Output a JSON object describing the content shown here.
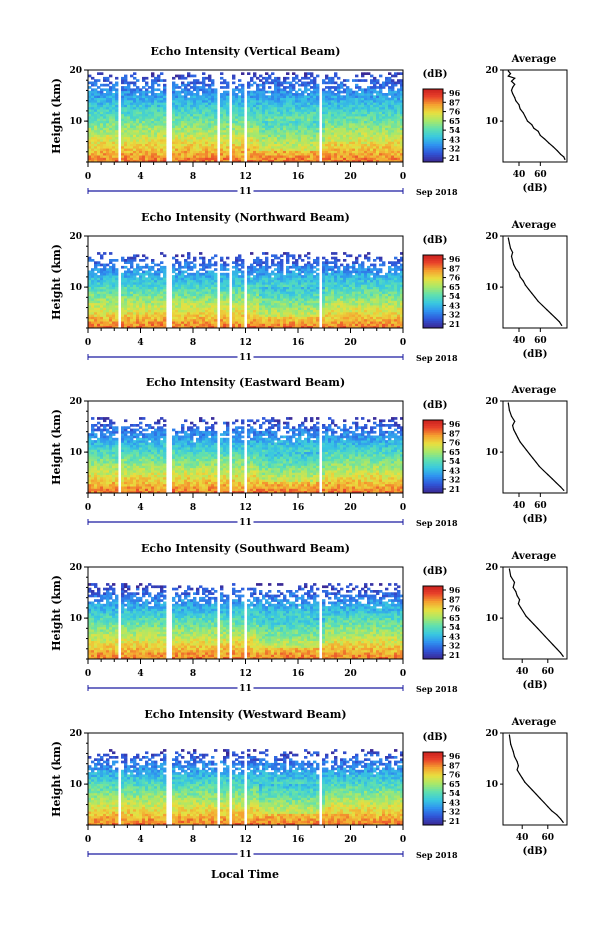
{
  "figure": {
    "xlabel": "Local Time",
    "colors": {
      "background": "#ffffff",
      "axis": "#000000",
      "date_axis": "#1a1aa0",
      "colormap": [
        "#3b2a96",
        "#2f55d9",
        "#2f92f0",
        "#39c8e0",
        "#5fe0b0",
        "#a8e86a",
        "#e8e040",
        "#f5a030",
        "#e8402a",
        "#c81e1e"
      ]
    }
  },
  "chart_data": [
    {
      "type": "heatmap",
      "title": "Echo Intensity (Vertical Beam)",
      "ylabel": "Height (km)",
      "ylim": [
        2,
        20
      ],
      "yticks": [
        "20",
        "10"
      ],
      "xlim": [
        0,
        24
      ],
      "xticks": [
        "0",
        "4",
        "8",
        "12",
        "16",
        "20",
        "0"
      ],
      "date_label": "11",
      "date_suffix": "Sep 2018",
      "colorbar_label": "(dB)",
      "colorbar_ticks": [
        "96",
        "87",
        "76",
        "65",
        "54",
        "43",
        "32",
        "21"
      ],
      "top_km": 19.5,
      "gaps_hours": [
        [
          2.3,
          2.6
        ],
        [
          5.9,
          6.5
        ],
        [
          9.8,
          10.1
        ],
        [
          10.8,
          11.0
        ],
        [
          11.9,
          12.2
        ],
        [
          17.6,
          17.9
        ]
      ],
      "profile": {
        "title": "Average",
        "xlabel": "(dB)",
        "xticks": [
          "40",
          "60"
        ],
        "xlim": [
          25,
          85
        ],
        "ylim": [
          2,
          20
        ],
        "yticks": [
          "20",
          "10"
        ],
        "x": [
          83,
          82,
          79,
          76,
          72,
          68,
          64,
          60,
          58,
          54,
          52,
          48,
          46,
          44,
          41,
          40,
          37,
          36,
          34,
          33,
          34,
          36,
          33,
          36,
          30,
          32,
          30
        ],
        "y": [
          2.5,
          3.0,
          3.5,
          4.2,
          5.0,
          5.7,
          6.5,
          7.2,
          8.0,
          8.6,
          9.3,
          10.0,
          10.8,
          11.6,
          12.4,
          13.2,
          14.0,
          14.6,
          15.4,
          16.0,
          16.6,
          17.2,
          17.8,
          18.4,
          18.8,
          19.3,
          19.8
        ]
      }
    },
    {
      "type": "heatmap",
      "title": "Echo Intensity (Northward Beam)",
      "ylabel": "Height (km)",
      "ylim": [
        2,
        20
      ],
      "yticks": [
        "20",
        "10"
      ],
      "xlim": [
        0,
        24
      ],
      "xticks": [
        "0",
        "4",
        "8",
        "12",
        "16",
        "20",
        "0"
      ],
      "date_label": "11",
      "date_suffix": "Sep 2018",
      "colorbar_label": "(dB)",
      "colorbar_ticks": [
        "96",
        "87",
        "76",
        "65",
        "54",
        "43",
        "32",
        "21"
      ],
      "top_km": 16.5,
      "gaps_hours": [
        [
          2.3,
          2.6
        ],
        [
          5.9,
          6.5
        ],
        [
          9.8,
          10.1
        ],
        [
          10.8,
          11.0
        ],
        [
          11.9,
          12.2
        ],
        [
          17.6,
          17.9
        ]
      ],
      "profile": {
        "title": "Average",
        "xlabel": "(dB)",
        "xticks": [
          "40",
          "60"
        ],
        "xlim": [
          25,
          85
        ],
        "ylim": [
          2,
          20
        ],
        "yticks": [
          "20",
          "10"
        ],
        "x": [
          80,
          78,
          74,
          70,
          66,
          62,
          58,
          55,
          52,
          49,
          46,
          44,
          41,
          40,
          37,
          35,
          34,
          33,
          34,
          32,
          31,
          30
        ],
        "y": [
          2.5,
          3.2,
          4.0,
          4.8,
          5.6,
          6.4,
          7.2,
          8.0,
          8.8,
          9.6,
          10.4,
          11.2,
          12.0,
          12.8,
          13.6,
          14.4,
          15.2,
          16.0,
          16.8,
          17.6,
          18.6,
          19.6
        ]
      }
    },
    {
      "type": "heatmap",
      "title": "Echo Intensity (Eastward Beam)",
      "ylabel": "Height (km)",
      "ylim": [
        2,
        20
      ],
      "yticks": [
        "20",
        "10"
      ],
      "xlim": [
        0,
        24
      ],
      "xticks": [
        "0",
        "4",
        "8",
        "12",
        "16",
        "20",
        "0"
      ],
      "date_label": "11",
      "date_suffix": "Sep 2018",
      "colorbar_label": "(dB)",
      "colorbar_ticks": [
        "96",
        "87",
        "76",
        "65",
        "54",
        "43",
        "32",
        "21"
      ],
      "top_km": 16.5,
      "gaps_hours": [
        [
          2.3,
          2.6
        ],
        [
          5.9,
          6.5
        ],
        [
          9.8,
          10.1
        ],
        [
          10.8,
          11.0
        ],
        [
          11.9,
          12.2
        ],
        [
          17.6,
          17.9
        ]
      ],
      "profile": {
        "title": "Average",
        "xlabel": "(dB)",
        "xticks": [
          "40",
          "60"
        ],
        "xlim": [
          25,
          85
        ],
        "ylim": [
          2,
          20
        ],
        "yticks": [
          "20",
          "10"
        ],
        "x": [
          82,
          79,
          75,
          71,
          67,
          63,
          59,
          56,
          53,
          50,
          47,
          44,
          41,
          39,
          37,
          35,
          34,
          36,
          33,
          31,
          30
        ],
        "y": [
          2.5,
          3.2,
          4.0,
          4.8,
          5.6,
          6.4,
          7.2,
          8.0,
          8.8,
          9.6,
          10.4,
          11.2,
          12.0,
          12.8,
          13.6,
          14.4,
          15.2,
          16.0,
          17.0,
          18.2,
          19.6
        ]
      }
    },
    {
      "type": "heatmap",
      "title": "Echo Intensity (Southward Beam)",
      "ylabel": "Height (km)",
      "ylim": [
        2,
        20
      ],
      "yticks": [
        "20",
        "10"
      ],
      "xlim": [
        0,
        24
      ],
      "xticks": [
        "0",
        "4",
        "8",
        "12",
        "16",
        "20",
        "0"
      ],
      "date_label": "11",
      "date_suffix": "Sep 2018",
      "colorbar_label": "(dB)",
      "colorbar_ticks": [
        "96",
        "87",
        "76",
        "65",
        "54",
        "43",
        "32",
        "21"
      ],
      "top_km": 16.5,
      "gaps_hours": [
        [
          2.3,
          2.6
        ],
        [
          5.9,
          6.5
        ],
        [
          9.8,
          10.1
        ],
        [
          10.8,
          11.0
        ],
        [
          11.9,
          12.2
        ],
        [
          17.6,
          17.9
        ]
      ],
      "profile": {
        "title": "Average",
        "xlabel": "(dB)",
        "xticks": [
          "40",
          "60"
        ],
        "xlim": [
          25,
          75
        ],
        "ylim": [
          2,
          20
        ],
        "yticks": [
          "20",
          "10"
        ],
        "x": [
          72,
          70,
          67,
          64,
          61,
          58,
          55,
          52,
          49,
          46,
          43,
          41,
          39,
          37,
          38,
          36,
          35,
          33,
          34,
          31,
          30
        ],
        "y": [
          2.5,
          3.2,
          4.0,
          4.8,
          5.6,
          6.4,
          7.2,
          8.0,
          8.8,
          9.6,
          10.4,
          11.2,
          12.0,
          12.8,
          13.6,
          14.4,
          15.2,
          16.0,
          17.0,
          18.2,
          19.6
        ]
      }
    },
    {
      "type": "heatmap",
      "title": "Echo Intensity (Westward Beam)",
      "ylabel": "Height (km)",
      "ylim": [
        2,
        20
      ],
      "yticks": [
        "20",
        "10"
      ],
      "xlim": [
        0,
        24
      ],
      "xticks": [
        "0",
        "4",
        "8",
        "12",
        "16",
        "20",
        "0"
      ],
      "date_label": "11",
      "date_suffix": "Sep 2018",
      "colorbar_label": "(dB)",
      "colorbar_ticks": [
        "96",
        "87",
        "76",
        "65",
        "54",
        "43",
        "32",
        "21"
      ],
      "top_km": 16.5,
      "gaps_hours": [
        [
          2.3,
          2.6
        ],
        [
          5.9,
          6.5
        ],
        [
          9.8,
          10.1
        ],
        [
          10.8,
          11.0
        ],
        [
          11.9,
          12.2
        ],
        [
          17.6,
          17.9
        ]
      ],
      "profile": {
        "title": "Average",
        "xlabel": "(dB)",
        "xticks": [
          "40",
          "60"
        ],
        "xlim": [
          25,
          75
        ],
        "ylim": [
          2,
          20
        ],
        "yticks": [
          "20",
          "10"
        ],
        "x": [
          72,
          70,
          67,
          63,
          60,
          57,
          54,
          51,
          48,
          45,
          42,
          40,
          38,
          36,
          37,
          36,
          34,
          33,
          31,
          30
        ],
        "y": [
          2.5,
          3.2,
          4.0,
          4.8,
          5.6,
          6.4,
          7.2,
          8.0,
          8.8,
          9.6,
          10.4,
          11.2,
          12.0,
          12.8,
          13.6,
          14.4,
          15.4,
          16.4,
          17.8,
          19.6
        ]
      }
    }
  ]
}
